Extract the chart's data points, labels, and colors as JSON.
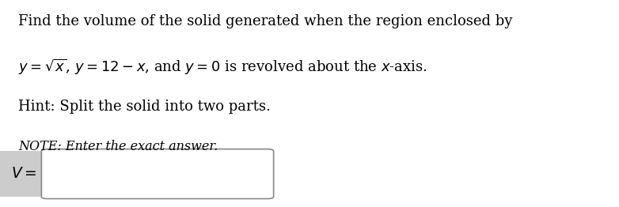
{
  "background_color": "#ffffff",
  "line1": "Find the volume of the solid generated when the region enclosed by",
  "line2": "$y = \\sqrt{x}$, $y = 12 - x$, and $y = 0$ is revolved about the $x$-axis.",
  "line3": "Hint: Split the solid into two parts.",
  "note_line": "NOTE: Enter the exact answer.",
  "label": "$V = $",
  "main_fontsize": 13.0,
  "note_fontsize": 11.5,
  "label_fontsize": 13.5,
  "text_color": "#000000",
  "label_bg_color": "#cccccc",
  "box_facecolor": "#ffffff",
  "box_edgecolor": "#888888"
}
